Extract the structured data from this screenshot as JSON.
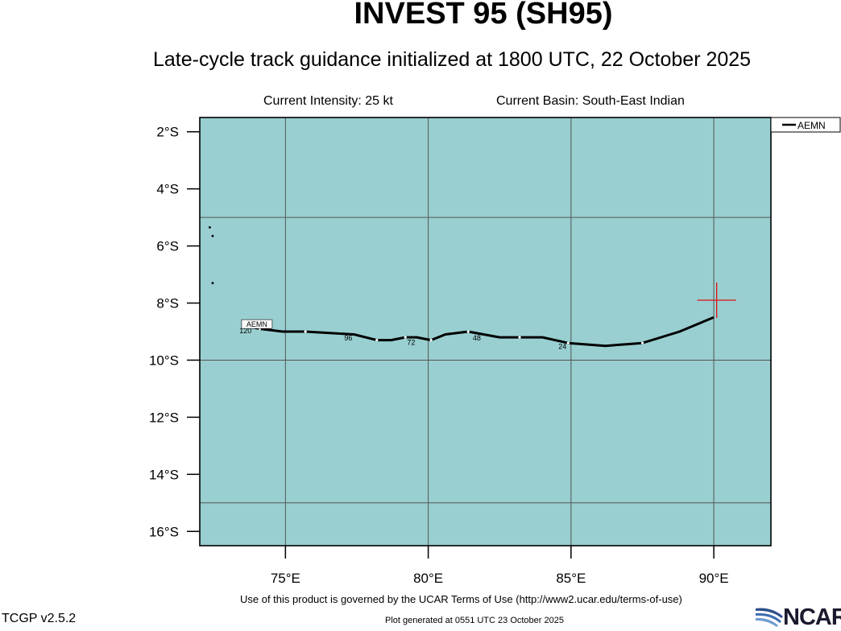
{
  "header": {
    "title": "INVEST 95 (SH95)",
    "subtitle": "Late-cycle track guidance initialized at 1800 UTC, 22 October 2025",
    "intensity": "Current Intensity: 25 kt",
    "basin": "Current Basin: South-East Indian"
  },
  "map": {
    "ocean_color": "#99cfd0",
    "grid_color": "#555555",
    "track_color": "#000000",
    "current_position_color": "#e01010",
    "lon_range": [
      72,
      92
    ],
    "lat_range": [
      -16.5,
      -1.5
    ],
    "lat_ticks": [
      {
        "value": -2,
        "label": "2°S"
      },
      {
        "value": -4,
        "label": "4°S"
      },
      {
        "value": -6,
        "label": "6°S"
      },
      {
        "value": -8,
        "label": "8°S"
      },
      {
        "value": -10,
        "label": "10°S"
      },
      {
        "value": -12,
        "label": "12°S"
      },
      {
        "value": -14,
        "label": "14°S"
      },
      {
        "value": -16,
        "label": "16°S"
      }
    ],
    "lon_ticks": [
      {
        "value": 75,
        "label": "75°E"
      },
      {
        "value": 80,
        "label": "80°E"
      },
      {
        "value": 85,
        "label": "85°E"
      },
      {
        "value": 90,
        "label": "90°E"
      }
    ],
    "grid_lats": [
      -5,
      -10,
      -15
    ],
    "grid_lons": [
      75,
      80,
      85,
      90
    ],
    "current_position": {
      "lon": 90.1,
      "lat": -7.9
    },
    "legend": {
      "label": "AEMN"
    },
    "track": {
      "model": "AEMN",
      "points": [
        {
          "lon": 90.0,
          "lat": -8.5
        },
        {
          "lon": 88.8,
          "lat": -9.0
        },
        {
          "lon": 87.5,
          "lat": -9.4
        },
        {
          "lon": 86.2,
          "lat": -9.5
        },
        {
          "lon": 84.9,
          "lat": -9.4
        },
        {
          "lon": 84.0,
          "lat": -9.2
        },
        {
          "lon": 83.2,
          "lat": -9.2
        },
        {
          "lon": 82.5,
          "lat": -9.2
        },
        {
          "lon": 81.4,
          "lat": -9.0
        },
        {
          "lon": 80.6,
          "lat": -9.1
        },
        {
          "lon": 80.1,
          "lat": -9.3
        },
        {
          "lon": 79.6,
          "lat": -9.2
        },
        {
          "lon": 79.2,
          "lat": -9.2
        },
        {
          "lon": 78.7,
          "lat": -9.3
        },
        {
          "lon": 78.2,
          "lat": -9.3
        },
        {
          "lon": 77.4,
          "lat": -9.1
        },
        {
          "lon": 75.7,
          "lat": -9.0
        },
        {
          "lon": 74.9,
          "lat": -9.0
        },
        {
          "lon": 74.1,
          "lat": -8.9
        },
        {
          "lon": 73.6,
          "lat": -8.8
        }
      ],
      "hour_labels": [
        {
          "text": "24",
          "lon": 84.7,
          "lat": -9.5
        },
        {
          "text": "48",
          "lon": 81.7,
          "lat": -9.2
        },
        {
          "text": "72",
          "lon": 79.4,
          "lat": -9.35
        },
        {
          "text": "96",
          "lon": 77.2,
          "lat": -9.2
        },
        {
          "text": "120",
          "lon": 73.6,
          "lat": -8.95
        }
      ],
      "end_label": {
        "text": "AEMN",
        "lon": 74.0,
        "lat": -8.75
      }
    },
    "islands": [
      {
        "lon": 72.35,
        "lat": -5.35
      },
      {
        "lon": 72.45,
        "lat": -5.65
      },
      {
        "lon": 72.45,
        "lat": -7.3
      }
    ]
  },
  "footer": {
    "terms": "Use of this product is governed by the UCAR Terms of Use (http://www2.ucar.edu/terms-of-use)",
    "version": "TCGP v2.5.2",
    "generated": "Plot generated at 0551 UTC   23 October 2025",
    "logo_text": "NCAR"
  }
}
